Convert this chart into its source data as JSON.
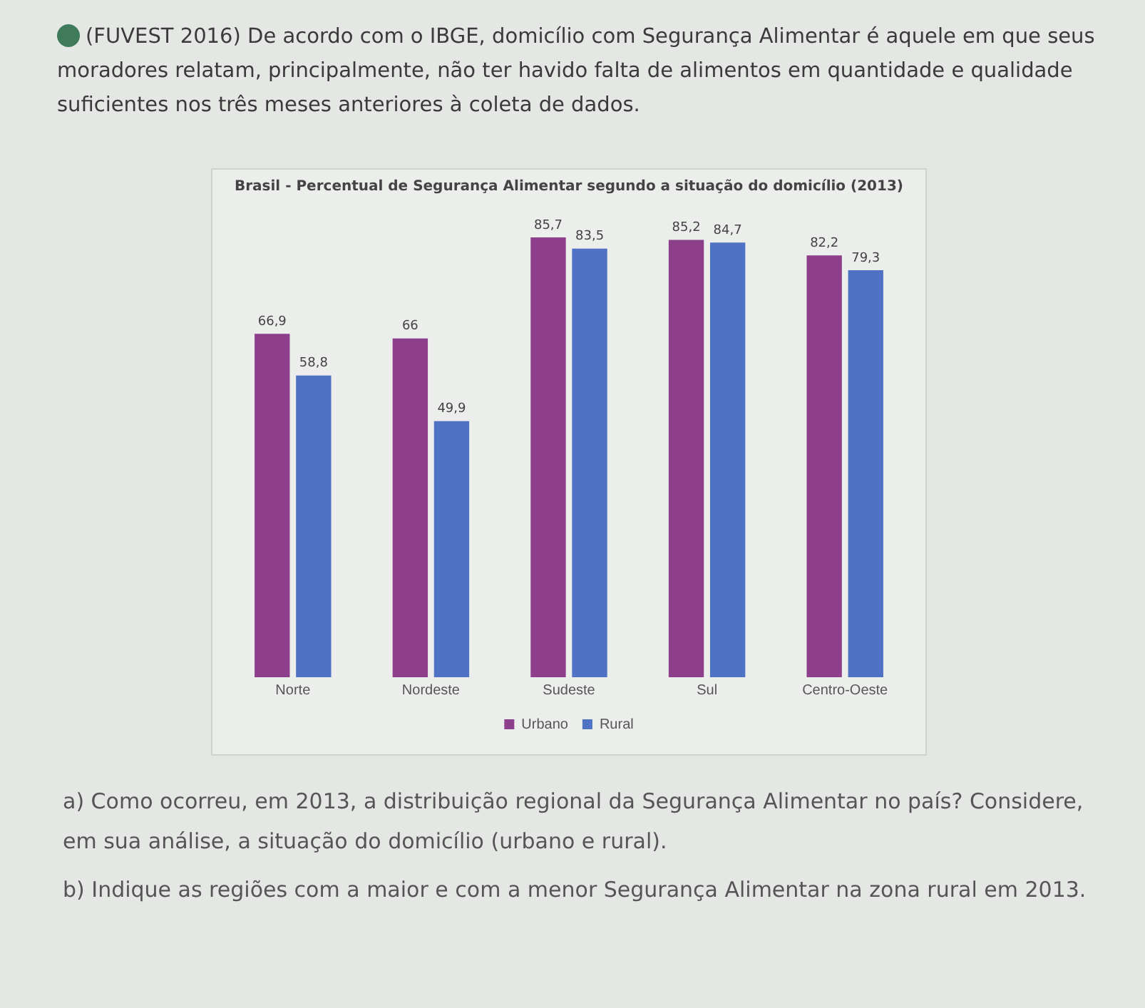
{
  "chart_data": {
    "type": "bar",
    "title": "Brasil - Percentual de Segurança Alimentar segundo a situação do domicílio (2013)",
    "categories": [
      "Norte",
      "Nordeste",
      "Sudeste",
      "Sul",
      "Centro-Oeste"
    ],
    "series": [
      {
        "name": "Urbano",
        "color": "#8e3f8c",
        "values": [
          66.9,
          66,
          85.7,
          85.2,
          82.2
        ],
        "value_labels": [
          "66,9",
          "66",
          "85,7",
          "85,2",
          "82,2"
        ]
      },
      {
        "name": "Rural",
        "color": "#4f72c4",
        "values": [
          58.8,
          49.9,
          83.5,
          84.7,
          79.3
        ],
        "value_labels": [
          "58,8",
          "49,9",
          "83,5",
          "84,7",
          "79,3"
        ]
      }
    ],
    "grid": false,
    "legend": "bottom",
    "annotations": [
      "(FUVEST 2016) De acordo com o IBGE, domicílio com Segurança Alimentar é aquele em que seus moradores relatam, principalmente, não ter havido falta de alimentos em quantidade e qualidade suficientes nos três meses anteriores à coleta de dados.",
      "a) Como ocorreu, em 2013, a distribuição regional da Segurança Alimentar no país? Considere, em sua análise, a situação do domicílio (urbano e rural).",
      "b) Indique as regiões com a maior e com a menor Segurança Alimentar na zona rural em 2013."
    ]
  }
}
